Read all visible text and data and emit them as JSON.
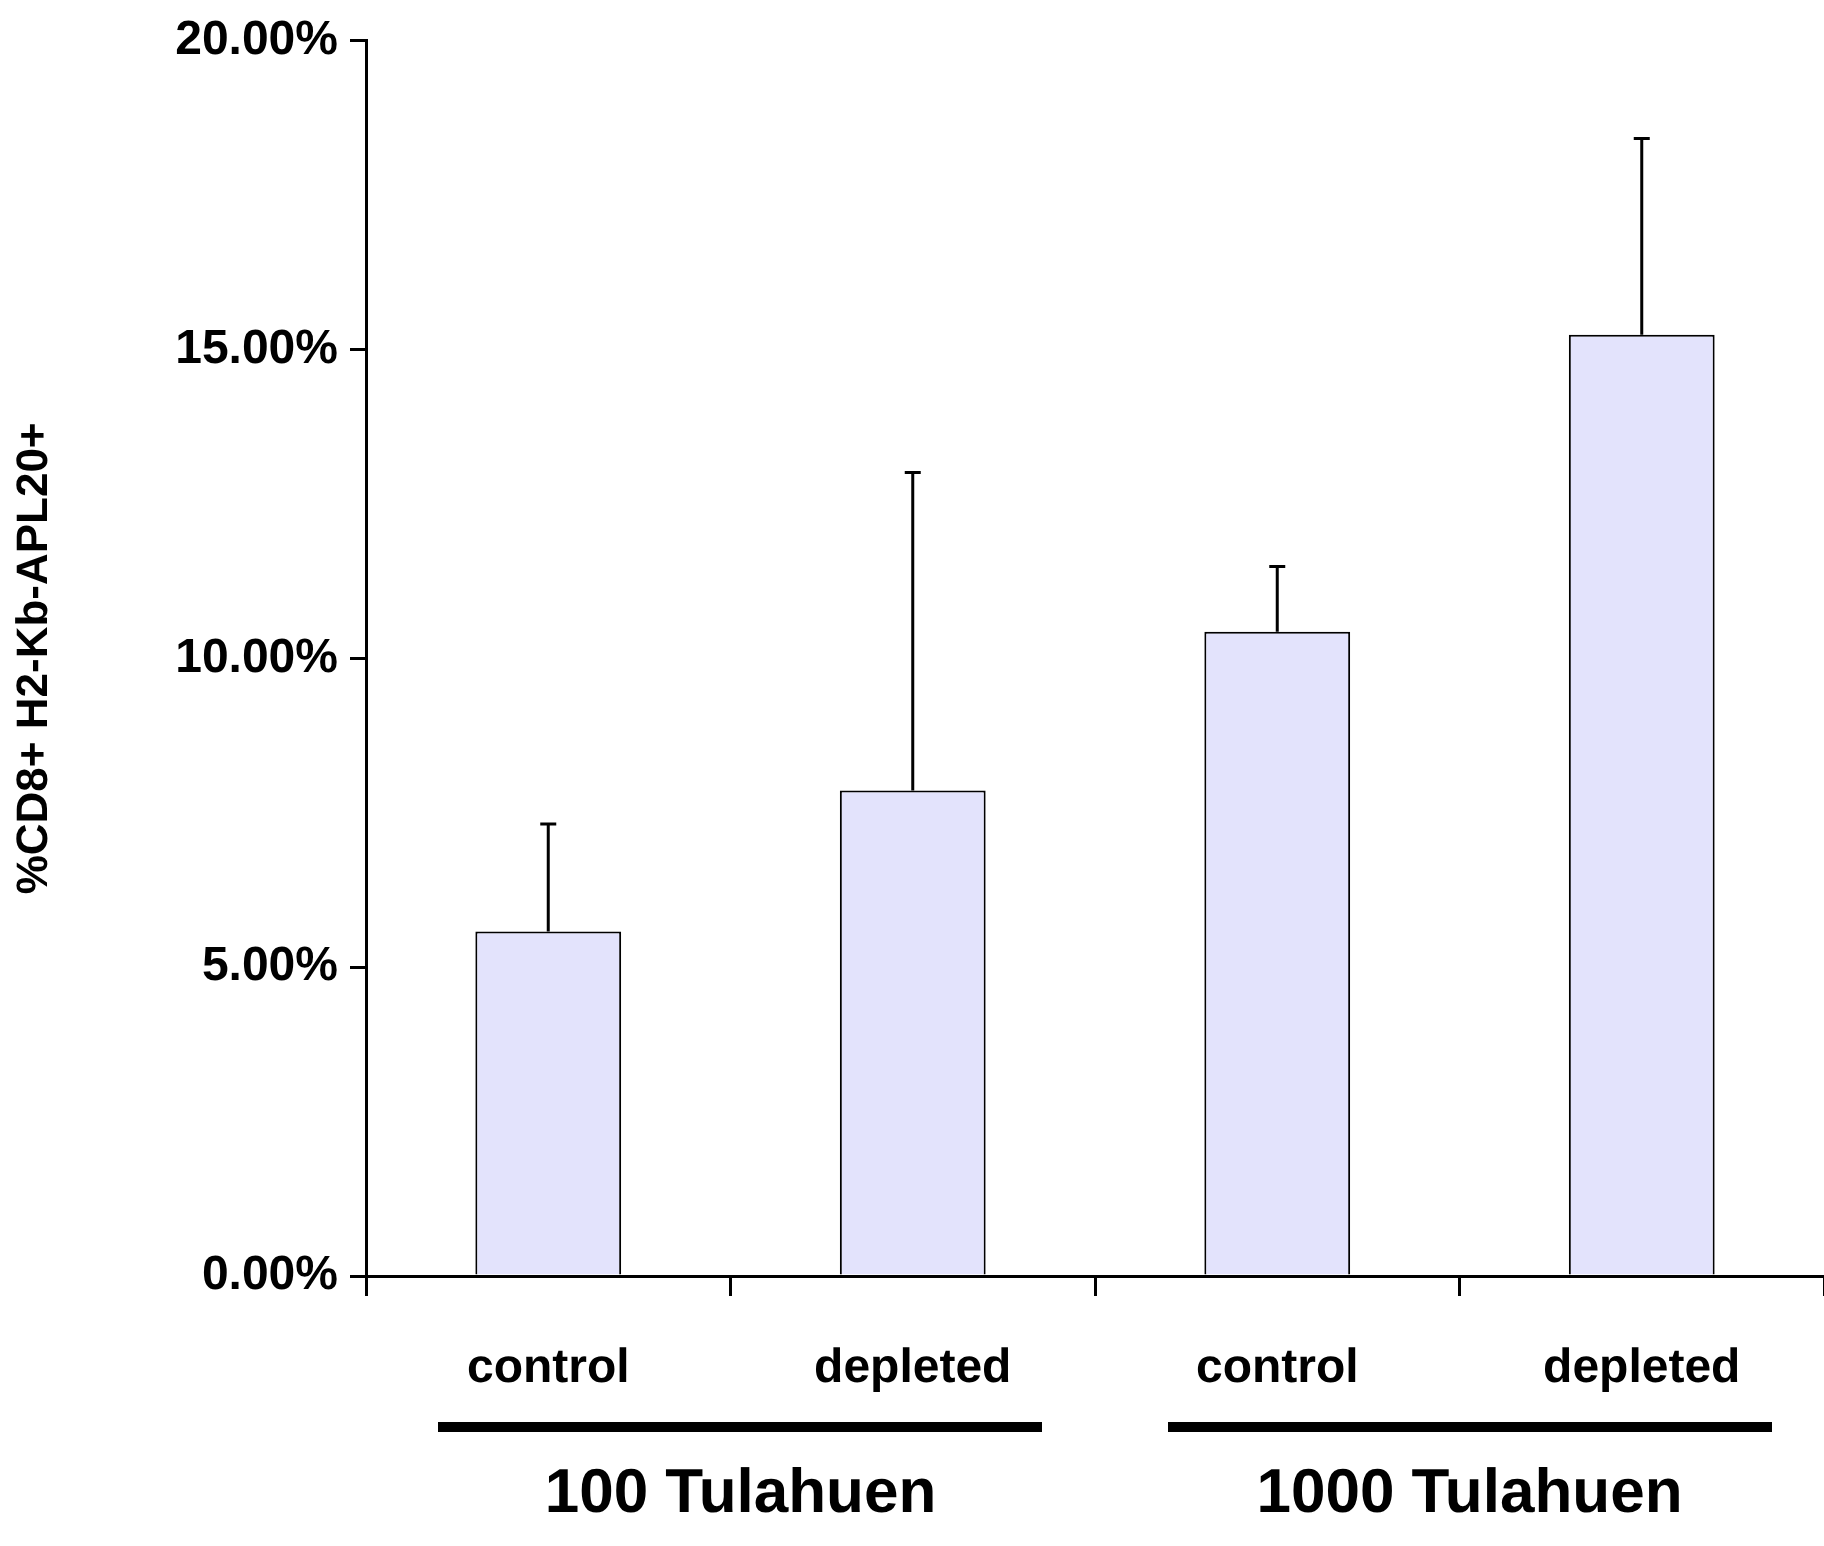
{
  "chart_data": {
    "type": "bar",
    "ylabel": "%CD8+ H2-Kb-APL20+",
    "categories": [
      "control",
      "depleted",
      "control",
      "depleted"
    ],
    "values": [
      5.58,
      7.86,
      10.43,
      15.24
    ],
    "errors": [
      [
        5.58,
        7.32
      ],
      [
        7.86,
        13.01
      ],
      [
        10.43,
        11.49
      ],
      [
        15.24,
        18.42
      ]
    ],
    "color": "#e3e3fc",
    "ylim": [
      0,
      20
    ],
    "yticks": [
      {
        "value": 0,
        "label": "0.00%"
      },
      {
        "value": 5,
        "label": "5.00%"
      },
      {
        "value": 10,
        "label": "10.00%"
      },
      {
        "value": 15,
        "label": "15.00%"
      },
      {
        "value": 20,
        "label": "20.00%"
      }
    ],
    "annotations": [
      "100 Tulahuen",
      "1000 Tulahuen"
    ],
    "grid": false,
    "legend": false
  }
}
